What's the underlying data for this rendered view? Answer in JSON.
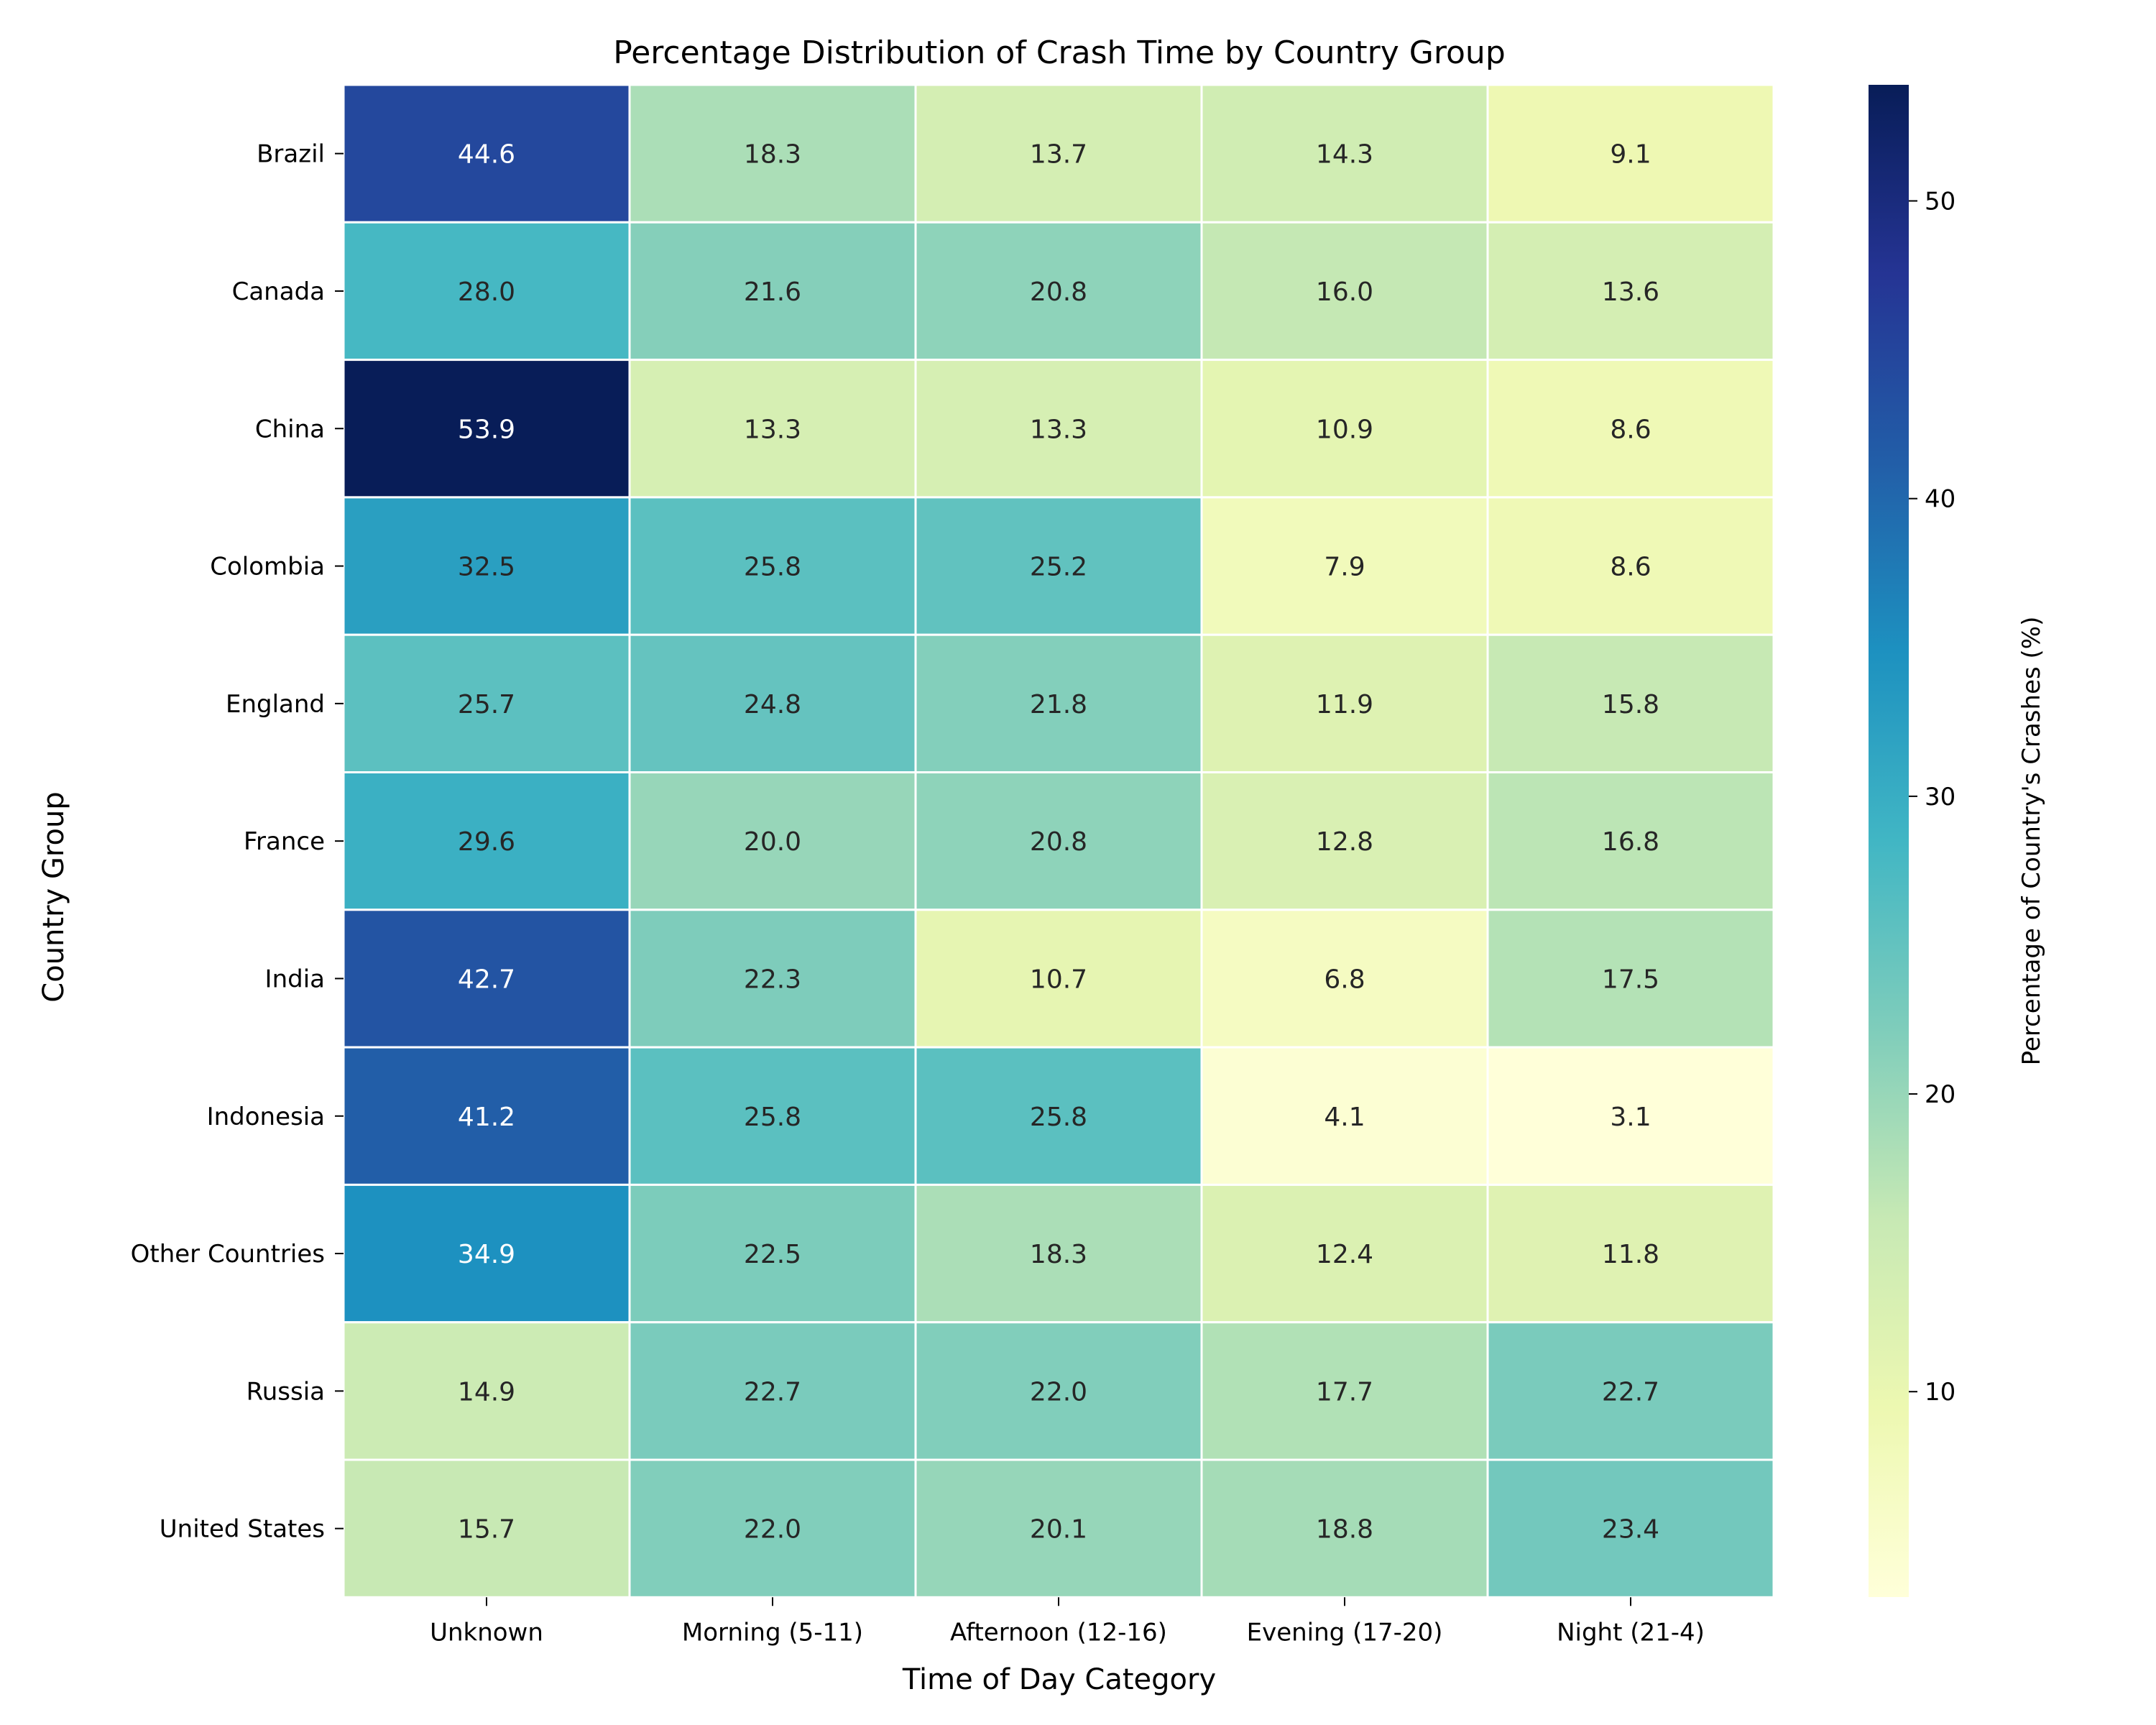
{
  "chart_data": {
    "type": "heatmap",
    "title": "Percentage Distribution of Crash Time by Country Group",
    "xlabel": "Time of Day Category",
    "ylabel": "Country Group",
    "colorbar_label": "Percentage of Country's Crashes (%)",
    "colormap": "YlGnBu",
    "colorbar_range": [
      3.1,
      53.9
    ],
    "colorbar_ticks": [
      10,
      20,
      30,
      40,
      50
    ],
    "columns": [
      "Unknown",
      "Morning (5-11)",
      "Afternoon (12-16)",
      "Evening (17-20)",
      "Night (21-4)"
    ],
    "rows": [
      "Brazil",
      "Canada",
      "China",
      "Colombia",
      "England",
      "France",
      "India",
      "Indonesia",
      "Other Countries",
      "Russia",
      "United States"
    ],
    "values": [
      [
        44.6,
        18.3,
        13.7,
        14.3,
        9.1
      ],
      [
        28.0,
        21.6,
        20.8,
        16.0,
        13.6
      ],
      [
        53.9,
        13.3,
        13.3,
        10.9,
        8.6
      ],
      [
        32.5,
        25.8,
        25.2,
        7.9,
        8.6
      ],
      [
        25.7,
        24.8,
        21.8,
        11.9,
        15.8
      ],
      [
        29.6,
        20.0,
        20.8,
        12.8,
        16.8
      ],
      [
        42.7,
        22.3,
        10.7,
        6.8,
        17.5
      ],
      [
        41.2,
        25.8,
        25.8,
        4.1,
        3.1
      ],
      [
        34.9,
        22.5,
        18.3,
        12.4,
        11.8
      ],
      [
        14.9,
        22.7,
        22.0,
        17.7,
        22.7
      ],
      [
        15.7,
        22.0,
        20.1,
        18.8,
        23.4
      ]
    ]
  }
}
